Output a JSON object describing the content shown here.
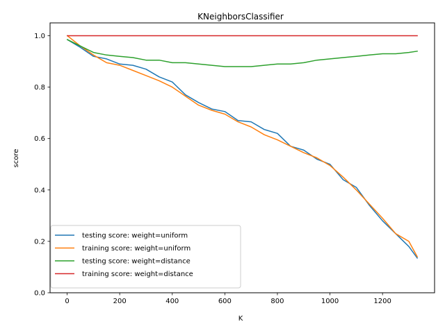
{
  "chart_data": {
    "type": "line",
    "title": "KNeighborsClassifier",
    "xlabel": "K",
    "ylabel": "score",
    "xlim": [
      -65,
      1398
    ],
    "ylim": [
      0,
      1.05
    ],
    "x_ticks": [
      0,
      200,
      400,
      600,
      800,
      1000,
      1200
    ],
    "y_ticks": [
      0.0,
      0.2,
      0.4,
      0.6,
      0.8,
      1.0
    ],
    "x_tick_labels": [
      "0",
      "200",
      "400",
      "600",
      "800",
      "1000",
      "1200"
    ],
    "y_tick_labels": [
      "0.0",
      "0.2",
      "0.4",
      "0.6",
      "0.8",
      "1.0"
    ],
    "grid": false,
    "legend_position": "lower-left",
    "x": [
      1,
      50,
      100,
      150,
      200,
      250,
      300,
      350,
      400,
      450,
      500,
      550,
      600,
      650,
      700,
      750,
      800,
      850,
      900,
      950,
      1000,
      1050,
      1100,
      1150,
      1200,
      1250,
      1300,
      1332
    ],
    "series": [
      {
        "name": "testing score: weight=uniform",
        "color": "#1f77b4",
        "values": [
          0.985,
          0.955,
          0.92,
          0.91,
          0.89,
          0.885,
          0.87,
          0.84,
          0.82,
          0.77,
          0.74,
          0.715,
          0.705,
          0.67,
          0.665,
          0.635,
          0.62,
          0.57,
          0.555,
          0.52,
          0.5,
          0.44,
          0.41,
          0.34,
          0.28,
          0.23,
          0.18,
          0.135
        ]
      },
      {
        "name": "training score: weight=uniform",
        "color": "#ff7f0e",
        "values": [
          1.0,
          0.96,
          0.925,
          0.895,
          0.885,
          0.865,
          0.845,
          0.825,
          0.8,
          0.765,
          0.73,
          0.71,
          0.695,
          0.665,
          0.645,
          0.615,
          0.595,
          0.57,
          0.545,
          0.525,
          0.495,
          0.45,
          0.4,
          0.345,
          0.29,
          0.23,
          0.2,
          0.14
        ]
      },
      {
        "name": "testing score: weight=distance",
        "color": "#2ca02c",
        "values": [
          0.985,
          0.96,
          0.935,
          0.925,
          0.92,
          0.915,
          0.905,
          0.905,
          0.895,
          0.895,
          0.89,
          0.885,
          0.88,
          0.88,
          0.88,
          0.885,
          0.89,
          0.89,
          0.895,
          0.905,
          0.91,
          0.915,
          0.92,
          0.925,
          0.93,
          0.93,
          0.935,
          0.94
        ]
      },
      {
        "name": "training score: weight=distance",
        "color": "#d62728",
        "values": [
          1.0,
          1.0,
          1.0,
          1.0,
          1.0,
          1.0,
          1.0,
          1.0,
          1.0,
          1.0,
          1.0,
          1.0,
          1.0,
          1.0,
          1.0,
          1.0,
          1.0,
          1.0,
          1.0,
          1.0,
          1.0,
          1.0,
          1.0,
          1.0,
          1.0,
          1.0,
          1.0,
          1.0
        ]
      }
    ]
  }
}
